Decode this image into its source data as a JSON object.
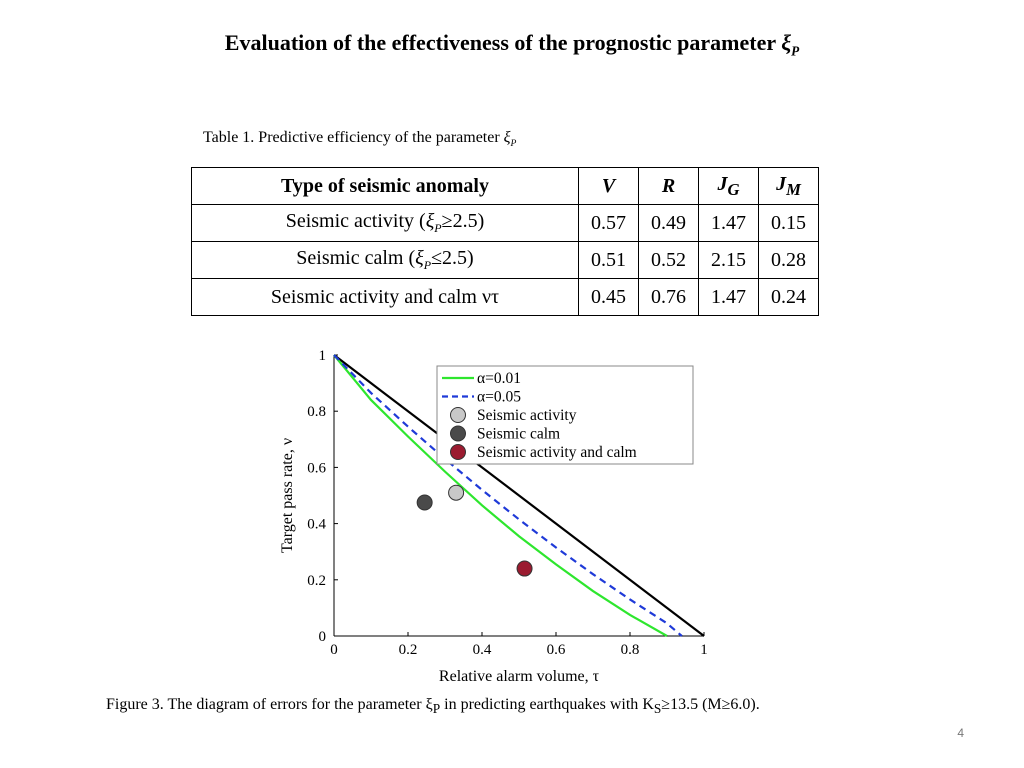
{
  "page": {
    "title": "Evaluation of the effectiveness of the prognostic parameter",
    "title_symbol": "ξ",
    "title_sub": "P",
    "page_number": "4"
  },
  "table": {
    "caption_prefix": "Table 1. Predictive efficiency of the parameter",
    "caption_symbol": "ξ",
    "caption_sub": "P",
    "headers": {
      "type": "Type of seismic anomaly",
      "v": "V",
      "r": "R",
      "jg": "J",
      "jg_sub": "G",
      "jm": "J",
      "jm_sub": "M"
    },
    "rows": [
      {
        "label_pre": "Seismic activity (",
        "sym": "ξ",
        "sub": "P",
        "label_post": "≥2.5)",
        "v": "0.57",
        "r": "0.49",
        "jg": "1.47",
        "jm": "0.15"
      },
      {
        "label_pre": "Seismic calm (",
        "sym": "ξ",
        "sub": "P",
        "label_post": "≤2.5)",
        "v": "0.51",
        "r": "0.52",
        "jg": "2.15",
        "jm": "0.28"
      },
      {
        "label_pre": "Seismic activity and calm ντ",
        "sym": "",
        "sub": "",
        "label_post": "",
        "v": "0.45",
        "r": "0.76",
        "jg": "1.47",
        "jm": "0.24"
      }
    ]
  },
  "chart_data": {
    "type": "line",
    "xlabel": "Relative alarm volume, τ",
    "ylabel": "Target pass rate, ν",
    "xlim": [
      0,
      1
    ],
    "ylim": [
      0,
      1
    ],
    "xticks": [
      "0",
      "0.2",
      "0.4",
      "0.6",
      "0.8",
      "1"
    ],
    "yticks": [
      "0",
      "0.2",
      "0.4",
      "0.6",
      "0.8",
      "1"
    ],
    "grid": false,
    "legend_position": "top-right",
    "series": [
      {
        "kind": "line",
        "color": "#000000",
        "style": "solid",
        "x": [
          0,
          1
        ],
        "y": [
          1,
          0
        ]
      },
      {
        "name": "α=0.01",
        "kind": "line",
        "color": "#2ee62e",
        "style": "solid",
        "x": [
          0,
          0.1,
          0.2,
          0.3,
          0.4,
          0.5,
          0.6,
          0.7,
          0.8,
          0.9
        ],
        "y": [
          1,
          0.84,
          0.71,
          0.585,
          0.465,
          0.355,
          0.255,
          0.16,
          0.075,
          0
        ]
      },
      {
        "name": "α=0.05",
        "kind": "line",
        "color": "#1f3ad8",
        "style": "dashed",
        "x": [
          0,
          0.1,
          0.2,
          0.3,
          0.4,
          0.5,
          0.6,
          0.7,
          0.8,
          0.9,
          0.94
        ],
        "y": [
          1,
          0.865,
          0.745,
          0.63,
          0.52,
          0.415,
          0.315,
          0.22,
          0.13,
          0.045,
          0
        ]
      },
      {
        "name": "Seismic activity",
        "kind": "point",
        "color": "#c8c8c8",
        "x": [
          0.33
        ],
        "y": [
          0.51
        ]
      },
      {
        "name": "Seismic calm",
        "kind": "point",
        "color": "#4a4a4a",
        "x": [
          0.245
        ],
        "y": [
          0.475
        ]
      },
      {
        "name": "Seismic activity and calm",
        "kind": "point",
        "color": "#9b1b30",
        "x": [
          0.515
        ],
        "y": [
          0.24
        ]
      }
    ]
  },
  "figure": {
    "caption_prefix": "Figure 3.  The diagram of  errors for the parameter",
    "caption_symbol": "ξ",
    "caption_sub": "P",
    "caption_mid": "in predicting earthquakes with",
    "caption_k": "K",
    "caption_k_sub": "S",
    "caption_cond": "≥13.5 (",
    "caption_m": "M",
    "caption_end": "≥6.0)."
  }
}
